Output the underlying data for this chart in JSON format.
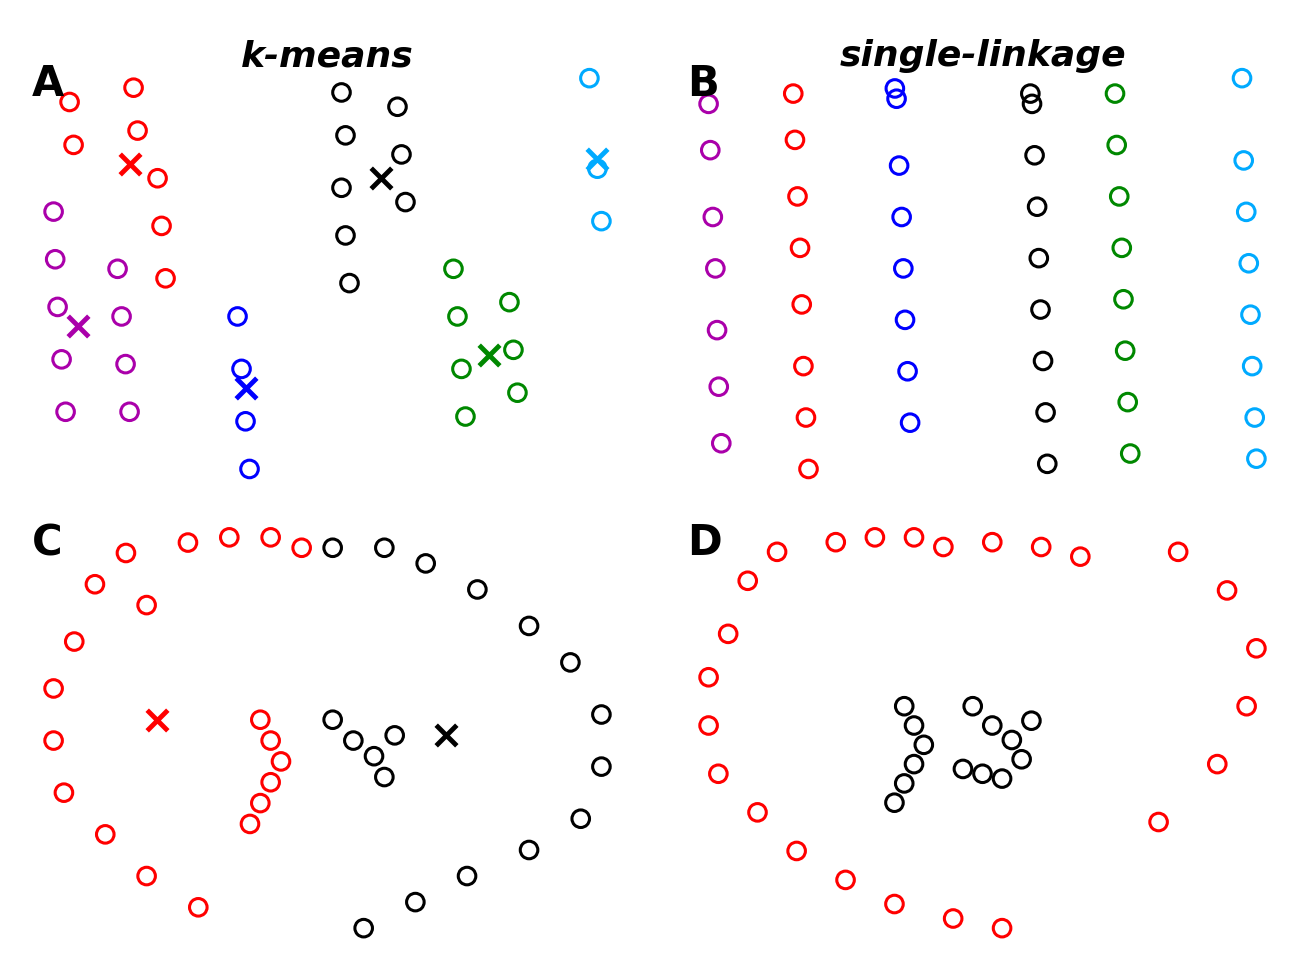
{
  "title_left": "k-means",
  "title_right": "single-linkage",
  "title_fontsize": 26,
  "label_fontsize": 30,
  "marker_size": 160,
  "centroid_marker_size": 220,
  "lw": 2.2,
  "centroid_lw": 3.5,
  "panel_A": {
    "label": "A",
    "clusters": [
      {
        "color": "#FF0000",
        "points": [
          [
            0.7,
            8.8
          ],
          [
            0.75,
            7.9
          ],
          [
            1.5,
            9.1
          ],
          [
            1.55,
            8.2
          ],
          [
            1.8,
            7.2
          ],
          [
            1.85,
            6.2
          ],
          [
            1.9,
            5.1
          ]
        ],
        "centroid": [
          1.45,
          7.5
        ]
      },
      {
        "color": "#AA00AA",
        "points": [
          [
            0.5,
            6.5
          ],
          [
            0.52,
            5.5
          ],
          [
            0.55,
            4.5
          ],
          [
            0.6,
            3.4
          ],
          [
            0.65,
            2.3
          ],
          [
            1.3,
            5.3
          ],
          [
            1.35,
            4.3
          ],
          [
            1.4,
            3.3
          ],
          [
            1.45,
            2.3
          ]
        ],
        "centroid": [
          0.8,
          4.1
        ]
      },
      {
        "color": "#0000FF",
        "points": [
          [
            2.8,
            4.3
          ],
          [
            2.85,
            3.2
          ],
          [
            2.9,
            2.1
          ],
          [
            2.95,
            1.1
          ]
        ],
        "centroid": [
          2.9,
          2.8
        ]
      },
      {
        "color": "#000000",
        "points": [
          [
            4.1,
            9.0
          ],
          [
            4.15,
            8.1
          ],
          [
            4.1,
            7.0
          ],
          [
            4.15,
            6.0
          ],
          [
            4.2,
            5.0
          ],
          [
            4.8,
            8.7
          ],
          [
            4.85,
            7.7
          ],
          [
            4.9,
            6.7
          ]
        ],
        "centroid": [
          4.6,
          7.2
        ]
      },
      {
        "color": "#008800",
        "points": [
          [
            5.5,
            5.3
          ],
          [
            5.55,
            4.3
          ],
          [
            5.6,
            3.2
          ],
          [
            5.65,
            2.2
          ],
          [
            6.2,
            4.6
          ],
          [
            6.25,
            3.6
          ],
          [
            6.3,
            2.7
          ]
        ],
        "centroid": [
          5.95,
          3.5
        ]
      },
      {
        "color": "#00AAFF",
        "points": [
          [
            7.2,
            9.3
          ],
          [
            7.3,
            7.4
          ],
          [
            7.35,
            6.3
          ]
        ],
        "centroid": [
          7.3,
          7.6
        ]
      }
    ]
  },
  "panel_B": {
    "label": "B",
    "clusters": [
      {
        "color": "#AA00AA",
        "points": [
          [
            0.5,
            9.0
          ],
          [
            0.52,
            8.1
          ],
          [
            0.55,
            6.8
          ],
          [
            0.58,
            5.8
          ],
          [
            0.6,
            4.6
          ],
          [
            0.62,
            3.5
          ],
          [
            0.65,
            2.4
          ]
        ]
      },
      {
        "color": "#FF0000",
        "points": [
          [
            1.5,
            9.2
          ],
          [
            1.52,
            8.3
          ],
          [
            1.55,
            7.2
          ],
          [
            1.58,
            6.2
          ],
          [
            1.6,
            5.1
          ],
          [
            1.62,
            3.9
          ],
          [
            1.65,
            2.9
          ],
          [
            1.68,
            1.9
          ]
        ]
      },
      {
        "color": "#0000FF",
        "points": [
          [
            2.7,
            9.3
          ],
          [
            2.72,
            9.1
          ],
          [
            2.75,
            7.8
          ],
          [
            2.78,
            6.8
          ],
          [
            2.8,
            5.8
          ],
          [
            2.82,
            4.8
          ],
          [
            2.85,
            3.8
          ],
          [
            2.88,
            2.8
          ]
        ]
      },
      {
        "color": "#000000",
        "points": [
          [
            4.3,
            9.2
          ],
          [
            4.32,
            9.0
          ],
          [
            4.35,
            8.0
          ],
          [
            4.38,
            7.0
          ],
          [
            4.4,
            6.0
          ],
          [
            4.42,
            5.0
          ],
          [
            4.45,
            4.0
          ],
          [
            4.48,
            3.0
          ],
          [
            4.5,
            2.0
          ]
        ]
      },
      {
        "color": "#008800",
        "points": [
          [
            5.3,
            9.2
          ],
          [
            5.32,
            8.2
          ],
          [
            5.35,
            7.2
          ],
          [
            5.38,
            6.2
          ],
          [
            5.4,
            5.2
          ],
          [
            5.42,
            4.2
          ],
          [
            5.45,
            3.2
          ],
          [
            5.48,
            2.2
          ]
        ]
      },
      {
        "color": "#00AAFF",
        "points": [
          [
            6.8,
            9.5
          ],
          [
            6.82,
            7.9
          ],
          [
            6.85,
            6.9
          ],
          [
            6.88,
            5.9
          ],
          [
            6.9,
            4.9
          ],
          [
            6.92,
            3.9
          ],
          [
            6.95,
            2.9
          ],
          [
            6.97,
            2.1
          ]
        ]
      }
    ]
  },
  "panel_C": {
    "label": "C",
    "clusters": [
      {
        "color": "#FF0000",
        "points": [
          [
            1.5,
            9.0
          ],
          [
            2.1,
            9.2
          ],
          [
            2.5,
            9.3
          ],
          [
            2.9,
            9.3
          ],
          [
            3.2,
            9.1
          ],
          [
            1.2,
            8.4
          ],
          [
            1.7,
            8.0
          ],
          [
            1.0,
            7.3
          ],
          [
            0.8,
            6.4
          ],
          [
            0.8,
            5.4
          ],
          [
            0.9,
            4.4
          ],
          [
            1.3,
            3.6
          ],
          [
            1.7,
            2.8
          ],
          [
            2.2,
            2.2
          ],
          [
            2.8,
            5.8
          ],
          [
            2.9,
            5.4
          ],
          [
            3.0,
            5.0
          ],
          [
            2.9,
            4.6
          ],
          [
            2.8,
            4.2
          ],
          [
            2.7,
            3.8
          ]
        ],
        "centroid": [
          1.8,
          5.8
        ]
      },
      {
        "color": "#000000",
        "points": [
          [
            3.5,
            9.1
          ],
          [
            4.0,
            9.1
          ],
          [
            4.4,
            8.8
          ],
          [
            4.9,
            8.3
          ],
          [
            5.4,
            7.6
          ],
          [
            5.8,
            6.9
          ],
          [
            6.1,
            5.9
          ],
          [
            6.1,
            4.9
          ],
          [
            5.9,
            3.9
          ],
          [
            5.4,
            3.3
          ],
          [
            4.8,
            2.8
          ],
          [
            4.3,
            2.3
          ],
          [
            3.8,
            1.8
          ],
          [
            3.5,
            5.8
          ],
          [
            3.7,
            5.4
          ],
          [
            3.9,
            5.1
          ],
          [
            4.1,
            5.5
          ],
          [
            4.0,
            4.7
          ]
        ],
        "centroid": [
          4.6,
          5.5
        ]
      }
    ]
  },
  "panel_D": {
    "label": "D",
    "clusters": [
      {
        "color": "#FF0000",
        "points": [
          [
            1.5,
            9.0
          ],
          [
            2.1,
            9.2
          ],
          [
            2.5,
            9.3
          ],
          [
            2.9,
            9.3
          ],
          [
            3.2,
            9.1
          ],
          [
            3.7,
            9.2
          ],
          [
            4.2,
            9.1
          ],
          [
            4.6,
            8.9
          ],
          [
            1.2,
            8.4
          ],
          [
            1.0,
            7.3
          ],
          [
            0.8,
            6.4
          ],
          [
            0.8,
            5.4
          ],
          [
            0.9,
            4.4
          ],
          [
            1.3,
            3.6
          ],
          [
            1.7,
            2.8
          ],
          [
            2.2,
            2.2
          ],
          [
            2.7,
            1.7
          ],
          [
            3.3,
            1.4
          ],
          [
            3.8,
            1.2
          ],
          [
            5.6,
            9.0
          ],
          [
            6.1,
            8.2
          ],
          [
            6.4,
            7.0
          ],
          [
            6.3,
            5.8
          ],
          [
            6.0,
            4.6
          ],
          [
            5.4,
            3.4
          ]
        ]
      },
      {
        "color": "#000000",
        "points": [
          [
            2.8,
            5.8
          ],
          [
            2.9,
            5.4
          ],
          [
            3.0,
            5.0
          ],
          [
            2.9,
            4.6
          ],
          [
            2.8,
            4.2
          ],
          [
            2.7,
            3.8
          ],
          [
            3.5,
            5.8
          ],
          [
            3.7,
            5.4
          ],
          [
            3.9,
            5.1
          ],
          [
            4.1,
            5.5
          ],
          [
            4.0,
            4.7
          ],
          [
            3.8,
            4.3
          ],
          [
            3.6,
            4.4
          ],
          [
            3.4,
            4.5
          ]
        ]
      }
    ]
  }
}
